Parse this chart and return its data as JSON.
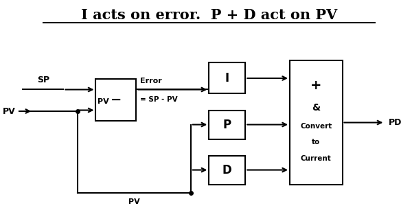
{
  "title": "I acts on error.  P + D act on PV",
  "title_fontsize": 15,
  "bg_color": "#ffffff",
  "line_color": "#000000",
  "box_color": "#ffffff",
  "box_edge": "#000000",
  "sub_block": [
    0.22,
    0.42,
    0.1,
    0.2
  ],
  "i_block": [
    0.5,
    0.55,
    0.09,
    0.15
  ],
  "p_block": [
    0.5,
    0.33,
    0.09,
    0.14
  ],
  "d_block": [
    0.5,
    0.11,
    0.09,
    0.14
  ],
  "sum_block": [
    0.7,
    0.11,
    0.13,
    0.6
  ]
}
